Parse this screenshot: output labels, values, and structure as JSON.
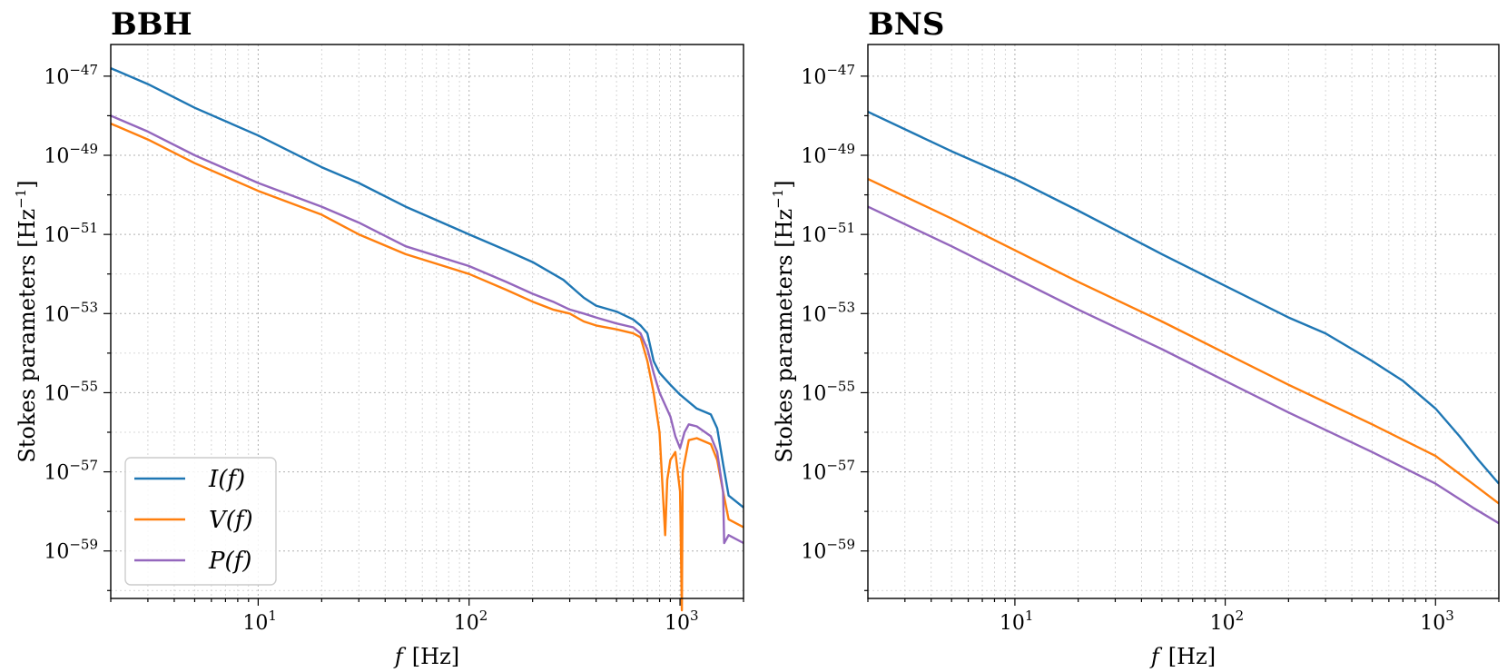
{
  "colors": {
    "I": "#1f77b4",
    "V": "#ff7f0e",
    "P": "#9467bd"
  },
  "chart_data": [
    {
      "type": "line",
      "title": "BBH",
      "xlabel_var": "f",
      "xlabel_unit": "[Hz]",
      "ylabel": "Stokes parameters [Hz",
      "ylabel_sup": "−1",
      "ylabel_close": "]",
      "xscale": "log",
      "yscale": "log",
      "xlim": [
        2,
        2000
      ],
      "ylim_log10": [
        -60.2,
        -46.2
      ],
      "xtick_labels": [
        {
          "base": "10",
          "exp": "1",
          "value": 10
        },
        {
          "base": "10",
          "exp": "2",
          "value": 100
        },
        {
          "base": "10",
          "exp": "3",
          "value": 1000
        }
      ],
      "ytick_labels": [
        {
          "base": "10",
          "exp": "−47",
          "value": -47
        },
        {
          "base": "10",
          "exp": "−49",
          "value": -49
        },
        {
          "base": "10",
          "exp": "−51",
          "value": -51
        },
        {
          "base": "10",
          "exp": "−53",
          "value": -53
        },
        {
          "base": "10",
          "exp": "−55",
          "value": -55
        },
        {
          "base": "10",
          "exp": "−57",
          "value": -57
        },
        {
          "base": "10",
          "exp": "−59",
          "value": -59
        }
      ],
      "legend": {
        "location": "lower-left",
        "entries": [
          "I(f)",
          "V(f)",
          "P(f)"
        ]
      },
      "series": [
        {
          "name": "I(f)",
          "color_key": "I",
          "x": [
            2,
            3,
            5,
            10,
            20,
            30,
            50,
            100,
            150,
            200,
            280,
            350,
            400,
            500,
            600,
            650,
            700,
            750,
            800,
            900,
            1000,
            1200,
            1400,
            1500,
            1600,
            1700,
            2000
          ],
          "log10_y": [
            -46.8,
            -47.2,
            -47.8,
            -48.5,
            -49.3,
            -49.7,
            -50.3,
            -51.0,
            -51.4,
            -51.7,
            -52.15,
            -52.6,
            -52.8,
            -52.95,
            -53.15,
            -53.3,
            -53.5,
            -54.2,
            -54.5,
            -54.8,
            -55.05,
            -55.4,
            -55.55,
            -55.9,
            -56.8,
            -57.6,
            -57.9
          ]
        },
        {
          "name": "V(f)",
          "color_key": "V",
          "x": [
            2,
            3,
            5,
            10,
            20,
            30,
            50,
            100,
            150,
            200,
            250,
            300,
            350,
            400,
            500,
            600,
            650,
            700,
            750,
            800,
            850,
            870,
            900,
            950,
            1000,
            1020,
            1030,
            1100,
            1200,
            1400,
            1500,
            1600,
            1700,
            2000
          ],
          "log10_y": [
            -48.2,
            -48.6,
            -49.2,
            -49.9,
            -50.5,
            -51.0,
            -51.5,
            -52.0,
            -52.4,
            -52.7,
            -52.9,
            -53.0,
            -53.2,
            -53.3,
            -53.4,
            -53.5,
            -53.6,
            -54.2,
            -55.0,
            -56.0,
            -58.6,
            -57.2,
            -56.7,
            -56.5,
            -57.5,
            -60.5,
            -57.0,
            -56.2,
            -56.15,
            -56.3,
            -56.7,
            -57.5,
            -58.2,
            -58.4
          ]
        },
        {
          "name": "P(f)",
          "color_key": "P",
          "x": [
            2,
            3,
            5,
            10,
            20,
            30,
            50,
            100,
            150,
            200,
            250,
            300,
            350,
            400,
            500,
            600,
            650,
            700,
            750,
            800,
            900,
            950,
            1000,
            1050,
            1100,
            1200,
            1400,
            1500,
            1600,
            1620,
            1700,
            2000
          ],
          "log10_y": [
            -48.0,
            -48.4,
            -49.0,
            -49.7,
            -50.3,
            -50.7,
            -51.3,
            -51.8,
            -52.2,
            -52.5,
            -52.7,
            -52.9,
            -53.0,
            -53.1,
            -53.25,
            -53.35,
            -53.5,
            -53.9,
            -54.5,
            -55.0,
            -55.6,
            -56.1,
            -56.4,
            -56.0,
            -55.8,
            -55.85,
            -56.1,
            -56.5,
            -57.5,
            -58.8,
            -58.6,
            -58.8
          ]
        }
      ]
    },
    {
      "type": "line",
      "title": "BNS",
      "xlabel_var": "f",
      "xlabel_unit": "[Hz]",
      "ylabel": "Stokes parameters [Hz",
      "ylabel_sup": "−1",
      "ylabel_close": "]",
      "xscale": "log",
      "yscale": "log",
      "xlim": [
        2,
        2000
      ],
      "ylim_log10": [
        -60.2,
        -46.2
      ],
      "xtick_labels": [
        {
          "base": "10",
          "exp": "1",
          "value": 10
        },
        {
          "base": "10",
          "exp": "2",
          "value": 100
        },
        {
          "base": "10",
          "exp": "3",
          "value": 1000
        }
      ],
      "ytick_labels": [
        {
          "base": "10",
          "exp": "−47",
          "value": -47
        },
        {
          "base": "10",
          "exp": "−49",
          "value": -49
        },
        {
          "base": "10",
          "exp": "−51",
          "value": -51
        },
        {
          "base": "10",
          "exp": "−53",
          "value": -53
        },
        {
          "base": "10",
          "exp": "−55",
          "value": -55
        },
        {
          "base": "10",
          "exp": "−57",
          "value": -57
        },
        {
          "base": "10",
          "exp": "−59",
          "value": -59
        }
      ],
      "series": [
        {
          "name": "I(f)",
          "color_key": "I",
          "x": [
            2,
            5,
            10,
            20,
            50,
            100,
            200,
            300,
            500,
            700,
            1000,
            1300,
            1600,
            2000
          ],
          "log10_y": [
            -47.9,
            -48.9,
            -49.6,
            -50.4,
            -51.5,
            -52.3,
            -53.1,
            -53.5,
            -54.2,
            -54.7,
            -55.4,
            -56.1,
            -56.7,
            -57.3
          ]
        },
        {
          "name": "V(f)",
          "color_key": "V",
          "x": [
            2,
            5,
            10,
            20,
            50,
            100,
            200,
            500,
            1000,
            1500,
            2000
          ],
          "log10_y": [
            -49.6,
            -50.6,
            -51.4,
            -52.2,
            -53.2,
            -54.0,
            -54.8,
            -55.8,
            -56.6,
            -57.3,
            -57.8
          ]
        },
        {
          "name": "P(f)",
          "color_key": "P",
          "x": [
            2,
            5,
            10,
            20,
            50,
            100,
            200,
            500,
            1000,
            1500,
            2000
          ],
          "log10_y": [
            -50.3,
            -51.3,
            -52.1,
            -52.9,
            -53.9,
            -54.7,
            -55.5,
            -56.5,
            -57.3,
            -57.9,
            -58.3
          ]
        }
      ]
    }
  ]
}
